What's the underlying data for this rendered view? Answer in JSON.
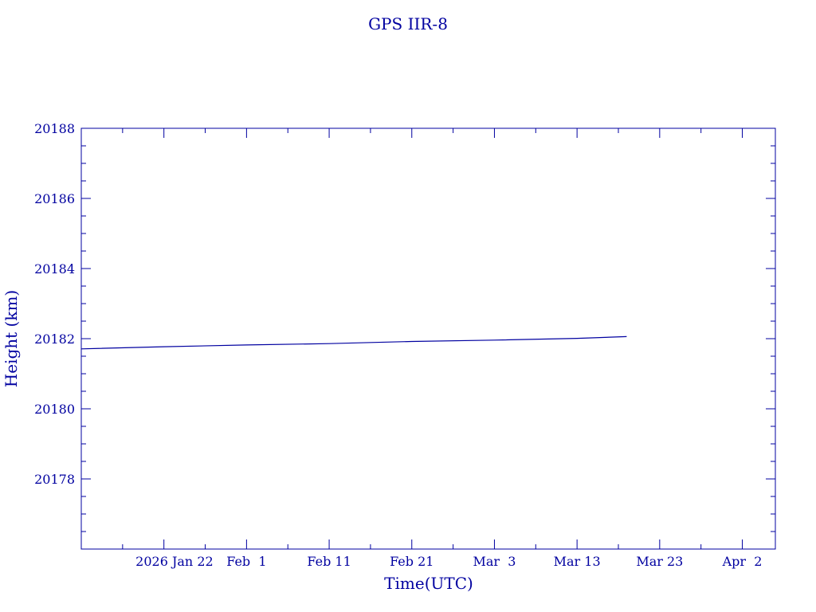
{
  "chart_data": {
    "type": "line",
    "title": "GPS IIR-8",
    "xlabel": "Time(UTC)",
    "ylabel": "Height (km)",
    "color": "#0000a0",
    "ylim": [
      20176,
      20188
    ],
    "xlim": [
      "2026-01-12",
      "2026-04-06"
    ],
    "y_ticks": [
      20178,
      20180,
      20182,
      20184,
      20186,
      20188
    ],
    "y_tick_labels": [
      "20178",
      "20180",
      "20182",
      "20184",
      "20186",
      "20188"
    ],
    "x_ticks": [
      "2026-01-22",
      "2026-02-01",
      "2026-02-11",
      "2026-02-21",
      "2026-03-03",
      "2026-03-13",
      "2026-03-23",
      "2026-04-02"
    ],
    "x_tick_labels": [
      "2026 Jan 22",
      "Feb  1",
      "Feb 11",
      "Feb 21",
      "Mar  3",
      "Mar 13",
      "Mar 23",
      "Apr  2"
    ],
    "series": [
      {
        "x": [
          "2026-01-12",
          "2026-01-22",
          "2026-02-01",
          "2026-02-11",
          "2026-02-21",
          "2026-03-03",
          "2026-03-13",
          "2026-03-19"
        ],
        "y": [
          20181.71,
          20181.77,
          20181.82,
          20181.86,
          20181.92,
          20181.96,
          20182.01,
          20182.06
        ]
      }
    ],
    "grid": false
  }
}
